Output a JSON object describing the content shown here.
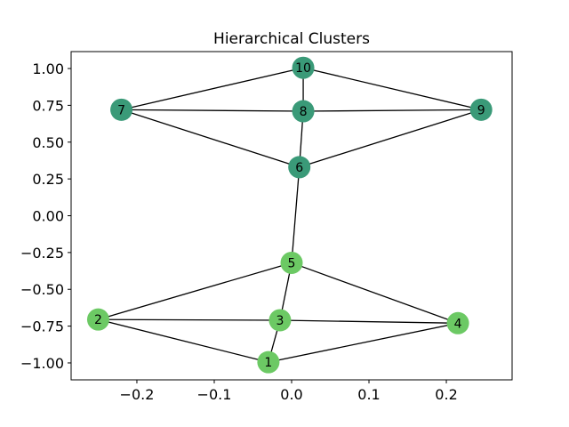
{
  "chart_data": {
    "type": "network",
    "title": "Hierarchical Clusters",
    "xlim": [
      -0.285,
      0.285
    ],
    "ylim": [
      -1.115,
      1.115
    ],
    "x_ticks": [
      -0.2,
      -0.1,
      0.0,
      0.1,
      0.2
    ],
    "x_tick_labels": [
      "−0.2",
      "−0.1",
      "0.0",
      "0.1",
      "0.2"
    ],
    "y_ticks": [
      1.0,
      0.75,
      0.5,
      0.25,
      0.0,
      -0.25,
      -0.5,
      -0.75,
      -1.0
    ],
    "y_tick_labels": [
      "1.00",
      "0.75",
      "0.50",
      "0.25",
      "0.00",
      "−0.25",
      "−0.50",
      "−0.75",
      "−1.00"
    ],
    "cluster_colors": {
      "upper": "#3a9a78",
      "lower": "#6cc964"
    },
    "edge_color": "#000000",
    "nodes": [
      {
        "id": "1",
        "label": "1",
        "x": -0.03,
        "y": -0.995,
        "cluster": "lower"
      },
      {
        "id": "2",
        "label": "2",
        "x": -0.25,
        "y": -0.705,
        "cluster": "lower"
      },
      {
        "id": "3",
        "label": "3",
        "x": -0.015,
        "y": -0.71,
        "cluster": "lower"
      },
      {
        "id": "4",
        "label": "4",
        "x": 0.215,
        "y": -0.73,
        "cluster": "lower"
      },
      {
        "id": "5",
        "label": "5",
        "x": 0.0,
        "y": -0.32,
        "cluster": "lower"
      },
      {
        "id": "6",
        "label": "6",
        "x": 0.01,
        "y": 0.33,
        "cluster": "upper"
      },
      {
        "id": "7",
        "label": "7",
        "x": -0.22,
        "y": 0.72,
        "cluster": "upper"
      },
      {
        "id": "8",
        "label": "8",
        "x": 0.015,
        "y": 0.71,
        "cluster": "upper"
      },
      {
        "id": "9",
        "label": "9",
        "x": 0.245,
        "y": 0.72,
        "cluster": "upper"
      },
      {
        "id": "10",
        "label": "10",
        "x": 0.015,
        "y": 1.005,
        "cluster": "upper"
      }
    ],
    "edges": [
      [
        "1",
        "2"
      ],
      [
        "1",
        "3"
      ],
      [
        "1",
        "4"
      ],
      [
        "2",
        "3"
      ],
      [
        "2",
        "5"
      ],
      [
        "3",
        "4"
      ],
      [
        "3",
        "5"
      ],
      [
        "4",
        "5"
      ],
      [
        "5",
        "6"
      ],
      [
        "6",
        "7"
      ],
      [
        "6",
        "8"
      ],
      [
        "6",
        "9"
      ],
      [
        "7",
        "8"
      ],
      [
        "7",
        "10"
      ],
      [
        "8",
        "9"
      ],
      [
        "8",
        "10"
      ],
      [
        "9",
        "10"
      ]
    ]
  }
}
